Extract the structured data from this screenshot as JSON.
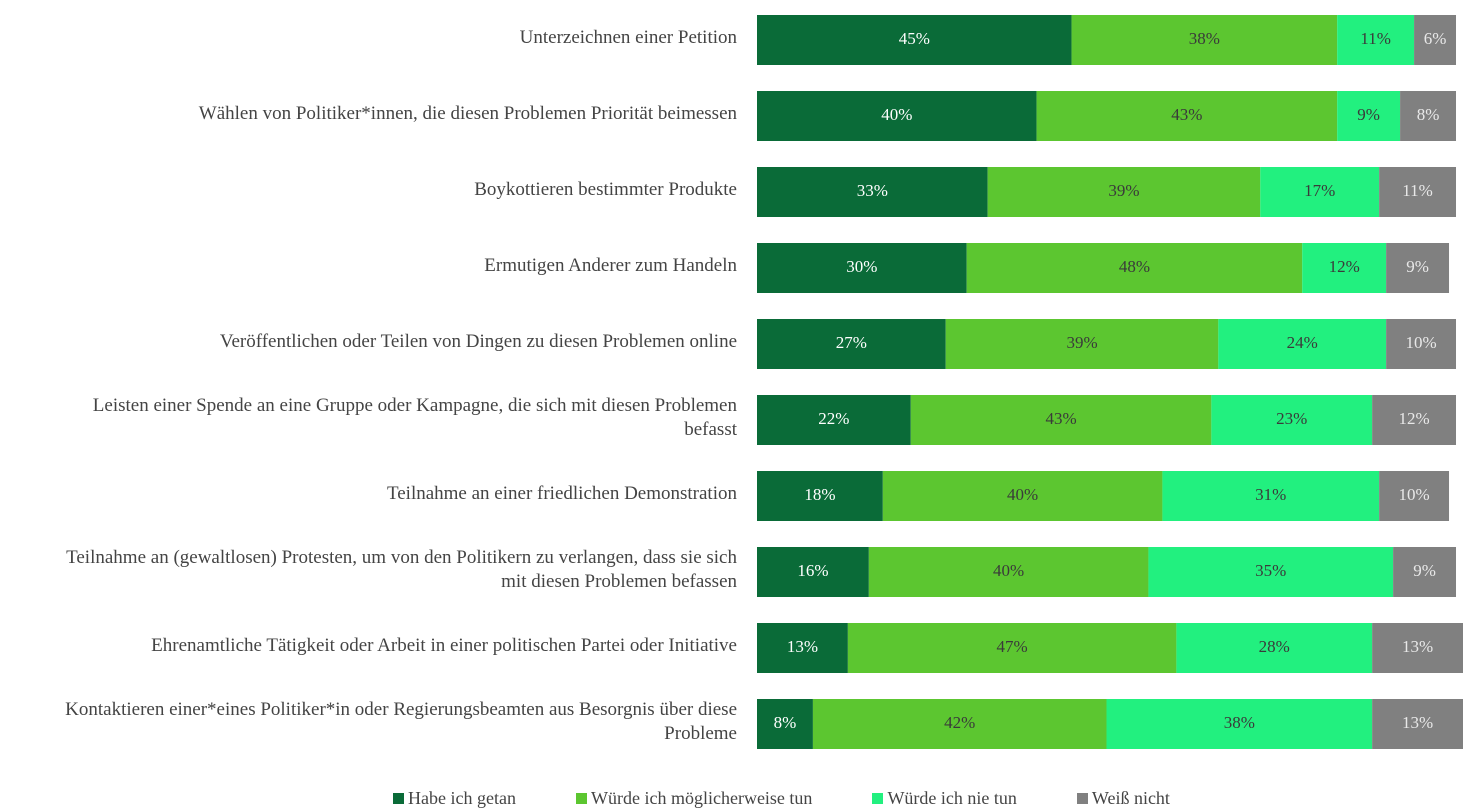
{
  "chart_data": {
    "type": "stacked-bar-horizontal",
    "categories": [
      "Unterzeichnen einer Petition",
      "Wählen von Politiker*innen, die diesen Problemen Priorität beimessen",
      "Boykottieren bestimmter Produkte",
      "Ermutigen Anderer zum Handeln",
      "Veröffentlichen oder Teilen von Dingen zu diesen Problemen online",
      "Leisten einer Spende an eine Gruppe oder Kampagne, die sich mit diesen Problemen befasst",
      "Teilnahme an einer friedlichen Demonstration",
      "Teilnahme an (gewaltlosen) Protesten, um von den Politikern zu verlangen, dass sie sich mit diesen Problemen befassen",
      "Ehrenamtliche Tätigkeit oder Arbeit in einer politischen Partei oder Initiative",
      "Kontaktieren einer*eines Politiker*in oder Regierungsbeamten aus Besorgnis über diese Probleme"
    ],
    "xlim": [
      0,
      101
    ],
    "series": [
      {
        "name": "Habe ich getan",
        "color": "#0a6b38",
        "values": [
          45,
          40,
          33,
          30,
          27,
          22,
          18,
          16,
          13,
          8
        ],
        "value_labels": [
          "45%",
          "40%",
          "33%",
          "30%",
          "27%",
          "22%",
          "18%",
          "16%",
          "13%",
          "8%"
        ]
      },
      {
        "name": "Würde ich möglicherweise tun",
        "color": "#5cc630",
        "values": [
          38,
          43,
          39,
          48,
          39,
          43,
          40,
          40,
          47,
          42
        ],
        "value_labels": [
          "38%",
          "43%",
          "39%",
          "48%",
          "39%",
          "43%",
          "40%",
          "40%",
          "47%",
          "42%"
        ]
      },
      {
        "name": "Würde ich nie tun",
        "color": "#22f07f",
        "values": [
          11,
          9,
          17,
          12,
          24,
          23,
          31,
          35,
          28,
          38
        ],
        "value_labels": [
          "11%",
          "9%",
          "17%",
          "12%",
          "24%",
          "23%",
          "31%",
          "35%",
          "28%",
          "38%"
        ]
      },
      {
        "name": "Weiß nicht",
        "color": "#808080",
        "values": [
          6,
          8,
          11,
          9,
          10,
          12,
          10,
          9,
          13,
          13
        ],
        "value_labels": [
          "6%",
          "8%",
          "11%",
          "9%",
          "10%",
          "12%",
          "10%",
          "9%",
          "13%",
          "13%"
        ]
      }
    ]
  }
}
